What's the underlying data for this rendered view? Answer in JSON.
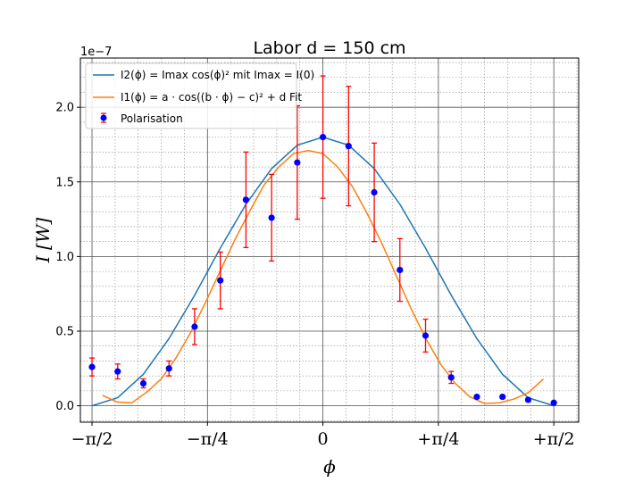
{
  "chart_data": {
    "type": "scatter",
    "title": "Labor d = 150 cm",
    "xlabel": "ϕ",
    "ylabel": "I [W]",
    "y_offset_label": "1e−7",
    "xlim": [
      -1.65,
      1.74
    ],
    "ylim": [
      -0.11,
      2.33
    ],
    "x_ticks": [
      {
        "value": -1.5708,
        "label": "−π/2"
      },
      {
        "value": -0.7854,
        "label": "−π/4"
      },
      {
        "value": 0,
        "label": "0"
      },
      {
        "value": 0.7854,
        "label": "+π/4"
      },
      {
        "value": 1.5708,
        "label": "+π/2"
      }
    ],
    "y_ticks": [
      {
        "value": 0.0,
        "label": "0.0"
      },
      {
        "value": 0.5,
        "label": "0.5"
      },
      {
        "value": 1.0,
        "label": "1.0"
      },
      {
        "value": 1.5,
        "label": "1.5"
      },
      {
        "value": 2.0,
        "label": "2.0"
      }
    ],
    "grid": true,
    "legend_position": "top-left",
    "legend": [
      {
        "label": "I2(ϕ) = Imax cos(ϕ)² mit Imax = I(0)",
        "color": "#1f77b4",
        "kind": "line"
      },
      {
        "label": "I1(ϕ) = a · cos((b · ϕ) − c)² + d Fit",
        "color": "#ff7f0e",
        "kind": "line"
      },
      {
        "label": "Polarisation",
        "color": "#0000ff",
        "kind": "errorbar"
      }
    ],
    "series": [
      {
        "name": "Polarisation",
        "kind": "errorbar",
        "color": "#0000ff",
        "error_color": "#ff0000",
        "x": [
          -1.5708,
          -1.3963,
          -1.2217,
          -1.0472,
          -0.8727,
          -0.6981,
          -0.5236,
          -0.3491,
          -0.1745,
          0.0,
          0.1745,
          0.3491,
          0.5236,
          0.6981,
          0.8727,
          1.0472,
          1.2217,
          1.3963,
          1.5708
        ],
        "y": [
          0.26,
          0.23,
          0.15,
          0.25,
          0.53,
          0.84,
          1.38,
          1.26,
          1.63,
          1.8,
          1.74,
          1.43,
          0.91,
          0.47,
          0.19,
          0.06,
          0.06,
          0.04,
          0.02
        ],
        "yerr": [
          0.06,
          0.05,
          0.03,
          0.05,
          0.12,
          0.19,
          0.32,
          0.29,
          0.38,
          0.41,
          0.4,
          0.33,
          0.21,
          0.11,
          0.04,
          0.01,
          0.01,
          0.01,
          0.005
        ]
      },
      {
        "name": "I2(ϕ)",
        "kind": "line",
        "color": "#1f77b4",
        "x": [
          -1.5708,
          -1.3963,
          -1.2217,
          -1.0472,
          -0.8727,
          -0.6981,
          -0.5236,
          -0.3491,
          -0.1745,
          0.0,
          0.1745,
          0.3491,
          0.5236,
          0.6981,
          0.8727,
          1.0472,
          1.2217,
          1.3963,
          1.5708
        ],
        "y": [
          0.0,
          0.054,
          0.211,
          0.45,
          0.741,
          1.056,
          1.35,
          1.589,
          1.746,
          1.8,
          1.746,
          1.589,
          1.35,
          1.056,
          0.741,
          0.45,
          0.211,
          0.054,
          0.0
        ]
      },
      {
        "name": "I1(ϕ) Fit",
        "kind": "line",
        "color": "#ff7f0e",
        "x": [
          -1.5,
          -1.4,
          -1.3,
          -1.2,
          -1.1,
          -1.0,
          -0.9,
          -0.8,
          -0.7,
          -0.6,
          -0.5,
          -0.4,
          -0.3,
          -0.2,
          -0.1,
          0.0,
          0.1,
          0.2,
          0.3,
          0.4,
          0.5,
          0.6,
          0.7,
          0.8,
          0.9,
          1.0,
          1.1,
          1.2,
          1.3,
          1.4,
          1.5
        ],
        "y": [
          0.07,
          0.025,
          0.02,
          0.09,
          0.18,
          0.32,
          0.49,
          0.69,
          0.9,
          1.11,
          1.3,
          1.48,
          1.6,
          1.69,
          1.71,
          1.69,
          1.6,
          1.47,
          1.29,
          1.09,
          0.87,
          0.65,
          0.45,
          0.28,
          0.15,
          0.06,
          0.015,
          0.02,
          0.045,
          0.09,
          0.18
        ]
      }
    ]
  }
}
